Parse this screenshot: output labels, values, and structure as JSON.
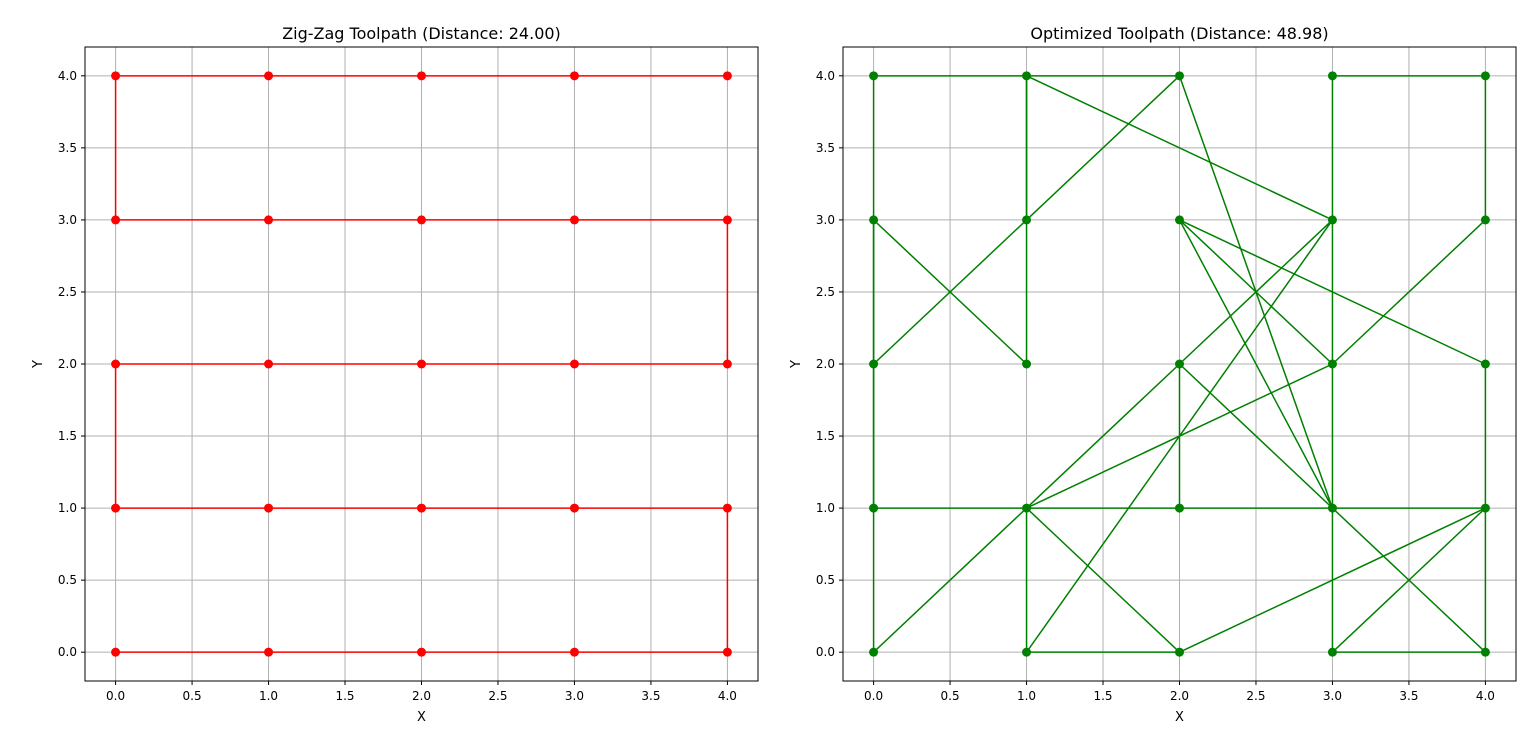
{
  "chart_data": [
    {
      "type": "line",
      "title": "Zig-Zag Toolpath (Distance: 24.00)",
      "xlabel": "X",
      "ylabel": "Y",
      "xlim": [
        -0.2,
        4.2
      ],
      "ylim": [
        -0.2,
        4.2
      ],
      "xticks": [
        "0.0",
        "0.5",
        "1.0",
        "1.5",
        "2.0",
        "2.5",
        "3.0",
        "3.5",
        "4.0"
      ],
      "yticks": [
        "0.0",
        "0.5",
        "1.0",
        "1.5",
        "2.0",
        "2.5",
        "3.0",
        "3.5",
        "4.0"
      ],
      "grid": true,
      "color": "#ff0000",
      "marker": "circle",
      "x": [
        0,
        1,
        2,
        3,
        4,
        4,
        3,
        2,
        1,
        0,
        0,
        1,
        2,
        3,
        4,
        4,
        3,
        2,
        1,
        0,
        0,
        1,
        2,
        3,
        4
      ],
      "y": [
        0,
        0,
        0,
        0,
        0,
        1,
        1,
        1,
        1,
        1,
        2,
        2,
        2,
        2,
        2,
        3,
        3,
        3,
        3,
        3,
        4,
        4,
        4,
        4,
        4
      ]
    },
    {
      "type": "line",
      "title": "Optimized Toolpath (Distance: 48.98)",
      "xlabel": "X",
      "ylabel": "Y",
      "xlim": [
        -0.2,
        4.2
      ],
      "ylim": [
        -0.2,
        4.2
      ],
      "xticks": [
        "0.0",
        "0.5",
        "1.0",
        "1.5",
        "2.0",
        "2.5",
        "3.0",
        "3.5",
        "4.0"
      ],
      "yticks": [
        "0.0",
        "0.5",
        "1.0",
        "1.5",
        "2.0",
        "2.5",
        "3.0",
        "3.5",
        "4.0"
      ],
      "grid": true,
      "color": "#008000",
      "marker": "circle",
      "x": [
        3,
        4,
        4,
        3,
        2,
        3,
        2,
        2,
        3,
        1,
        1,
        2,
        4,
        4,
        0,
        0,
        0,
        0,
        1,
        1,
        2,
        3,
        2,
        4,
        4,
        3,
        3
      ],
      "y": [
        4,
        4,
        3,
        2,
        3,
        1,
        1,
        2,
        3,
        0,
        1,
        2,
        0,
        1,
        1,
        0,
        2,
        3,
        2,
        4,
        4,
        1,
        3,
        2,
        1,
        0,
        4
      ],
      "extra_segments": [
        {
          "x": [
            1,
            0
          ],
          "y": [
            4,
            4
          ]
        },
        {
          "x": [
            0,
            0
          ],
          "y": [
            1,
            4
          ]
        },
        {
          "x": [
            0,
            1
          ],
          "y": [
            2,
            3
          ]
        },
        {
          "x": [
            1,
            2
          ],
          "y": [
            3,
            4
          ]
        },
        {
          "x": [
            0,
            1
          ],
          "y": [
            0,
            1
          ]
        },
        {
          "x": [
            1,
            2
          ],
          "y": [
            1,
            0
          ]
        },
        {
          "x": [
            1,
            2
          ],
          "y": [
            0,
            0
          ]
        },
        {
          "x": [
            2,
            4
          ],
          "y": [
            0,
            1
          ]
        },
        {
          "x": [
            1,
            3
          ],
          "y": [
            1,
            2
          ]
        },
        {
          "x": [
            1,
            1
          ],
          "y": [
            3,
            4
          ]
        },
        {
          "x": [
            1,
            3
          ],
          "y": [
            4,
            3
          ]
        },
        {
          "x": [
            3,
            4
          ],
          "y": [
            0,
            0
          ]
        }
      ]
    }
  ]
}
